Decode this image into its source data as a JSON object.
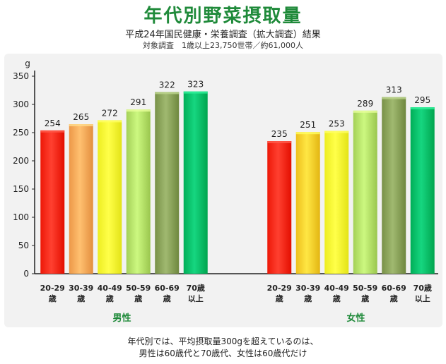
{
  "title": "年代別野菜摂取量",
  "subtitle": "平成24年国民健康・栄養調査（拡大調査）結果",
  "survey_note": "対象調査　1歳以上23,750世帯／約61,000人",
  "footnote_line1": "年代別では、平均摂取量300gを超えているのは、",
  "footnote_line2": "男性は60歳代と70歳代、女性は60歳代だけ",
  "chart_data": {
    "type": "bar",
    "ylabel": "g",
    "ylim": [
      0,
      350
    ],
    "yticks": [
      0,
      50,
      100,
      150,
      200,
      250,
      300,
      350
    ],
    "grid": false,
    "categories": [
      [
        "20-29",
        "歳"
      ],
      [
        "30-39",
        "歳"
      ],
      [
        "40-49",
        "歳"
      ],
      [
        "50-59",
        "歳"
      ],
      [
        "60-69",
        "歳"
      ],
      [
        "70歳",
        "以上"
      ]
    ],
    "colors": [
      "#ff2a1a",
      "#ffaa5a",
      "#ffff33",
      "#b6e26a",
      "#8aa35a",
      "#00c06a"
    ],
    "groups": [
      {
        "name": "男性",
        "values": [
          254,
          265,
          272,
          291,
          322,
          323
        ]
      },
      {
        "name": "女性",
        "values": [
          235,
          251,
          253,
          289,
          313,
          295
        ],
        "colors": [
          "#ff2a1a",
          "#ffd12e",
          "#ffff33",
          "#b6e26a",
          "#8aa35a",
          "#00c06a"
        ]
      }
    ]
  }
}
